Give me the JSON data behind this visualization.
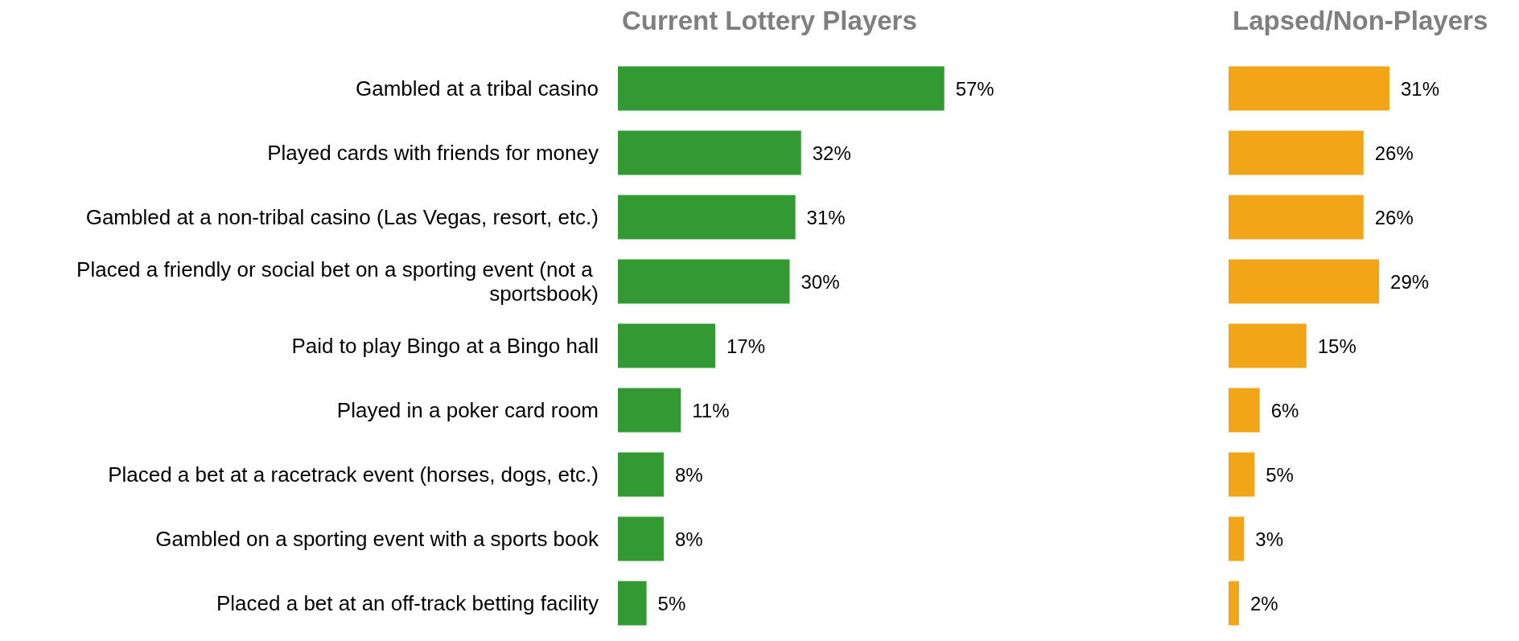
{
  "chart_data": [
    {
      "type": "bar",
      "orientation": "horizontal",
      "title": "Current Lottery Players",
      "tick_labels": "y",
      "categories": [
        "Gambled at a tribal casino",
        "Played cards with friends for money",
        "Gambled at a non-tribal casino (Las Vegas, resort, etc.)",
        "Placed a friendly or social bet on a sporting event (not a sportsbook)",
        "Paid to play Bingo at a Bingo hall",
        "Played in a poker card room",
        "Placed a bet at a racetrack event (horses, dogs, etc.)",
        "Gambled on a sporting event with a sports book",
        "Placed a bet at an off-track betting facility"
      ],
      "series": [
        {
          "color": "#339933",
          "values": [
            57,
            32,
            31,
            30,
            17,
            11,
            8,
            8,
            5
          ],
          "value_labels": [
            "57%",
            "32%",
            "31%",
            "30%",
            "17%",
            "11%",
            "8%",
            "8%",
            "5%"
          ]
        }
      ]
    },
    {
      "type": "bar",
      "orientation": "horizontal",
      "title": "Lapsed/Non-Players",
      "tick_labels": false,
      "categories": [
        null,
        null,
        null,
        null,
        null,
        null,
        null,
        null,
        null
      ],
      "series": [
        {
          "color": "#f2a516",
          "values": [
            31,
            26,
            26,
            29,
            15,
            6,
            5,
            3,
            2
          ],
          "value_labels": [
            "31%",
            "26%",
            "26%",
            "29%",
            "15%",
            "6%",
            "5%",
            "3%",
            "2%"
          ]
        }
      ]
    }
  ]
}
